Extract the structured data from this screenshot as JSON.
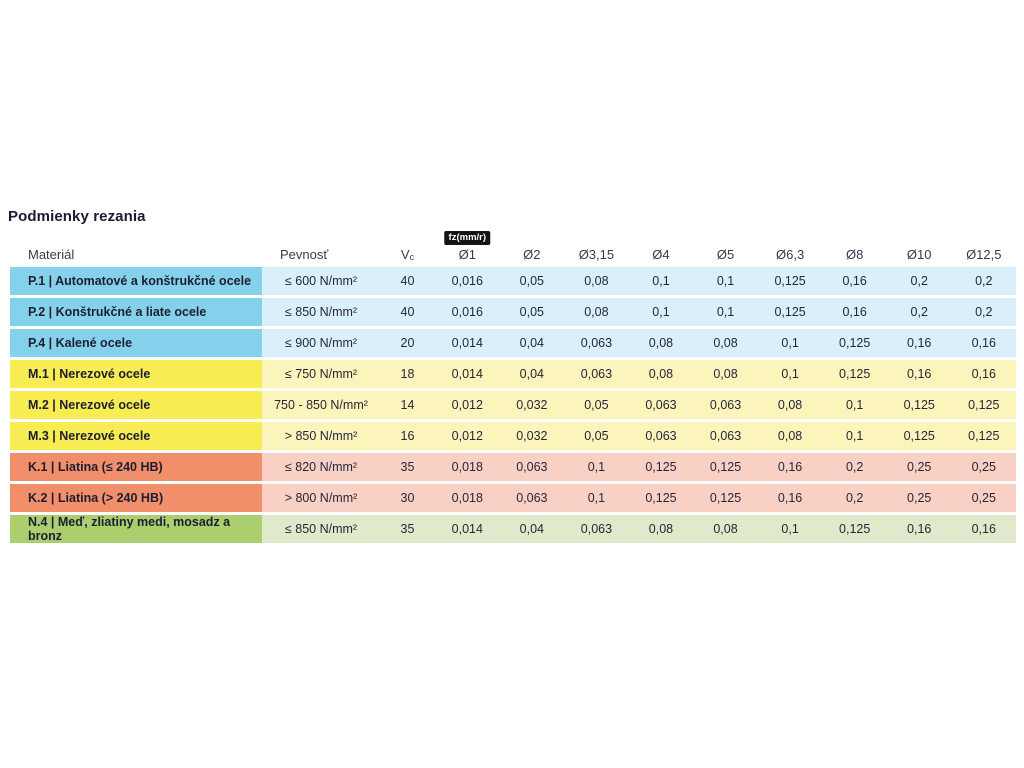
{
  "page": {
    "title": "Podmienky rezania"
  },
  "table": {
    "headers": {
      "material": "Materiál",
      "pevnost": "Pevnosť",
      "vc_base": "V",
      "vc_sub": "c",
      "fz_badge": "fz(mm/r)",
      "diameters": [
        "Ø1",
        "Ø2",
        "Ø3,15",
        "Ø4",
        "Ø5",
        "Ø6,3",
        "Ø8",
        "Ø10",
        "Ø12,5"
      ]
    },
    "rows": [
      {
        "group": "P",
        "material": "P.1 | Automatové a konštrukčné ocele",
        "pevnost": "≤ 600 N/mm²",
        "vc": "40",
        "values": [
          "0,016",
          "0,05",
          "0,08",
          "0,1",
          "0,1",
          "0,125",
          "0,16",
          "0,2",
          "0,2"
        ]
      },
      {
        "group": "P",
        "material": "P.2 | Konštrukčné a liate ocele",
        "pevnost": "≤ 850 N/mm²",
        "vc": "40",
        "values": [
          "0,016",
          "0,05",
          "0,08",
          "0,1",
          "0,1",
          "0,125",
          "0,16",
          "0,2",
          "0,2"
        ]
      },
      {
        "group": "P",
        "material": "P.4 | Kalené ocele",
        "pevnost": "≤ 900 N/mm²",
        "vc": "20",
        "values": [
          "0,014",
          "0,04",
          "0,063",
          "0,08",
          "0,08",
          "0,1",
          "0,125",
          "0,16",
          "0,16"
        ]
      },
      {
        "group": "M",
        "material": "M.1 | Nerezové ocele",
        "pevnost": "≤ 750 N/mm²",
        "vc": "18",
        "values": [
          "0,014",
          "0,04",
          "0,063",
          "0,08",
          "0,08",
          "0,1",
          "0,125",
          "0,16",
          "0,16"
        ]
      },
      {
        "group": "M",
        "material": "M.2 | Nerezové ocele",
        "pevnost": "750 - 850 N/mm²",
        "vc": "14",
        "values": [
          "0,012",
          "0,032",
          "0,05",
          "0,063",
          "0,063",
          "0,08",
          "0,1",
          "0,125",
          "0,125"
        ]
      },
      {
        "group": "M",
        "material": "M.3 | Nerezové ocele",
        "pevnost": "> 850 N/mm²",
        "vc": "16",
        "values": [
          "0,012",
          "0,032",
          "0,05",
          "0,063",
          "0,063",
          "0,08",
          "0,1",
          "0,125",
          "0,125"
        ]
      },
      {
        "group": "K",
        "material": "K.1 | Liatina (≤ 240 HB)",
        "pevnost": "≤ 820 N/mm²",
        "vc": "35",
        "values": [
          "0,018",
          "0,063",
          "0,1",
          "0,125",
          "0,125",
          "0,16",
          "0,2",
          "0,25",
          "0,25"
        ]
      },
      {
        "group": "K",
        "material": "K.2 | Liatina (> 240 HB)",
        "pevnost": "> 800 N/mm²",
        "vc": "30",
        "values": [
          "0,018",
          "0,063",
          "0,1",
          "0,125",
          "0,125",
          "0,16",
          "0,2",
          "0,25",
          "0,25"
        ]
      },
      {
        "group": "N",
        "material": "N.4 | Meď, zliatiny medi, mosadz a bronz",
        "pevnost": "≤ 850 N/mm²",
        "vc": "35",
        "values": [
          "0,014",
          "0,04",
          "0,063",
          "0,08",
          "0,08",
          "0,1",
          "0,125",
          "0,16",
          "0,16"
        ]
      }
    ]
  },
  "colors": {
    "badge_bg": "#141414",
    "badge_text": "#ffffff",
    "P": {
      "strong": "#85d1ec",
      "light": "#d9f0fa"
    },
    "M": {
      "strong": "#f7ec52",
      "light": "#fbf4bb"
    },
    "K": {
      "strong": "#f18f6b",
      "light": "#f8d0c4"
    },
    "N": {
      "strong": "#abce6f",
      "light": "#e0eaca"
    }
  }
}
